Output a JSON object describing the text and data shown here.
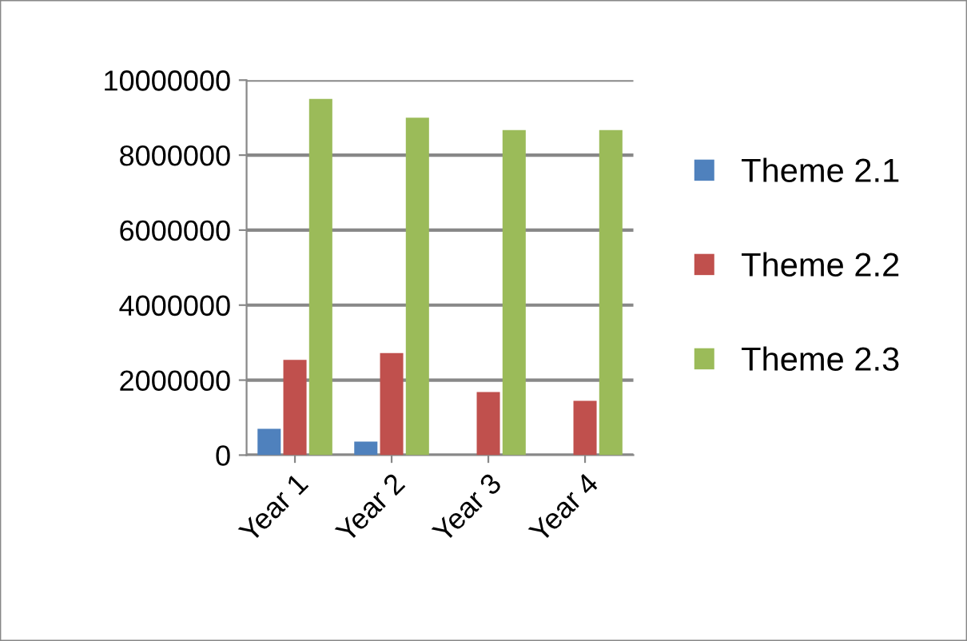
{
  "chart_data": {
    "type": "bar",
    "categories": [
      "Year 1",
      "Year 2",
      "Year 3",
      "Year 4"
    ],
    "series": [
      {
        "name": "Theme 2.1",
        "color": "#4f81bd",
        "values": [
          700000,
          360000,
          null,
          null
        ]
      },
      {
        "name": "Theme 2.2",
        "color": "#c0504d",
        "values": [
          2540000,
          2720000,
          1680000,
          1450000
        ]
      },
      {
        "name": "Theme 2.3",
        "color": "#9bbb59",
        "values": [
          9500000,
          9000000,
          8670000,
          8670000
        ]
      }
    ],
    "ylim": [
      0,
      10000000
    ],
    "yticks": [
      0,
      2000000,
      4000000,
      6000000,
      8000000,
      10000000
    ],
    "grid": "y",
    "legend": "right"
  }
}
